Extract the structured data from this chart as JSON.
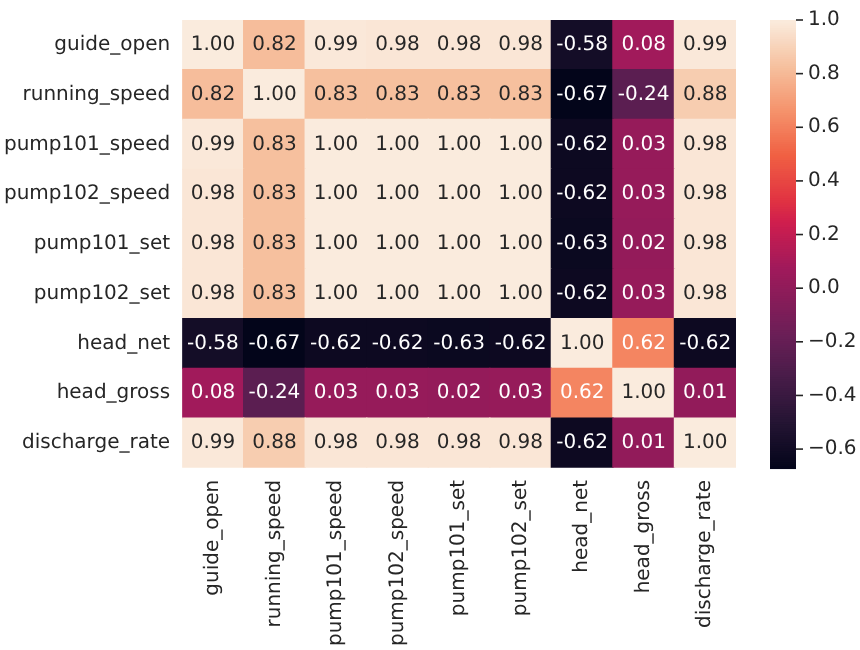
{
  "chart_data": {
    "type": "heatmap",
    "categories": [
      "guide_open",
      "running_speed",
      "pump101_speed",
      "pump102_speed",
      "pump101_set",
      "pump102_set",
      "head_net",
      "head_gross",
      "discharge_rate"
    ],
    "y_categories": [
      "guide_open",
      "running_speed",
      "pump101_speed",
      "pump102_speed",
      "pump101_set",
      "pump102_set",
      "head_net",
      "head_gross",
      "discharge_rate"
    ],
    "cells": [
      [
        1.0,
        0.82,
        0.99,
        0.98,
        0.98,
        0.98,
        -0.58,
        0.08,
        0.99
      ],
      [
        0.82,
        1.0,
        0.83,
        0.83,
        0.83,
        0.83,
        -0.67,
        -0.24,
        0.88
      ],
      [
        0.99,
        0.83,
        1.0,
        1.0,
        1.0,
        1.0,
        -0.62,
        0.03,
        0.98
      ],
      [
        0.98,
        0.83,
        1.0,
        1.0,
        1.0,
        1.0,
        -0.62,
        0.03,
        0.98
      ],
      [
        0.98,
        0.83,
        1.0,
        1.0,
        1.0,
        1.0,
        -0.63,
        0.02,
        0.98
      ],
      [
        0.98,
        0.83,
        1.0,
        1.0,
        1.0,
        1.0,
        -0.62,
        0.03,
        0.98
      ],
      [
        -0.58,
        -0.67,
        -0.62,
        -0.62,
        -0.63,
        -0.62,
        1.0,
        0.62,
        -0.62
      ],
      [
        0.08,
        -0.24,
        0.03,
        0.03,
        0.02,
        0.03,
        0.62,
        1.0,
        0.01
      ],
      [
        0.99,
        0.88,
        0.98,
        0.98,
        0.98,
        0.98,
        -0.62,
        0.01,
        1.0
      ]
    ],
    "cell_labels": [
      [
        "1.00",
        "0.82",
        "0.99",
        "0.98",
        "0.98",
        "0.98",
        "-0.58",
        "0.08",
        "0.99"
      ],
      [
        "0.82",
        "1.00",
        "0.83",
        "0.83",
        "0.83",
        "0.83",
        "-0.67",
        "-0.24",
        "0.88"
      ],
      [
        "0.99",
        "0.83",
        "1.00",
        "1.00",
        "1.00",
        "1.00",
        "-0.62",
        "0.03",
        "0.98"
      ],
      [
        "0.98",
        "0.83",
        "1.00",
        "1.00",
        "1.00",
        "1.00",
        "-0.62",
        "0.03",
        "0.98"
      ],
      [
        "0.98",
        "0.83",
        "1.00",
        "1.00",
        "1.00",
        "1.00",
        "-0.63",
        "0.02",
        "0.98"
      ],
      [
        "0.98",
        "0.83",
        "1.00",
        "1.00",
        "1.00",
        "1.00",
        "-0.62",
        "0.03",
        "0.98"
      ],
      [
        "-0.58",
        "-0.67",
        "-0.62",
        "-0.62",
        "-0.63",
        "-0.62",
        "1.00",
        "0.62",
        "-0.62"
      ],
      [
        "0.08",
        "-0.24",
        "0.03",
        "0.03",
        "0.02",
        "0.03",
        "0.62",
        "1.00",
        "0.01"
      ],
      [
        "0.99",
        "0.88",
        "0.98",
        "0.98",
        "0.98",
        "0.98",
        "-0.62",
        "0.01",
        "1.00"
      ]
    ],
    "clim": [
      -0.67,
      1.0
    ],
    "cticks": [
      {
        "value": 1.0,
        "label": "1.0"
      },
      {
        "value": 0.8,
        "label": "0.8"
      },
      {
        "value": 0.6,
        "label": "0.6"
      },
      {
        "value": 0.4,
        "label": "0.4"
      },
      {
        "value": 0.2,
        "label": "0.2"
      },
      {
        "value": 0.0,
        "label": "0.0"
      },
      {
        "value": -0.2,
        "label": "−0.2"
      },
      {
        "value": -0.4,
        "label": "−0.4"
      },
      {
        "value": -0.6,
        "label": "−0.6"
      }
    ]
  }
}
